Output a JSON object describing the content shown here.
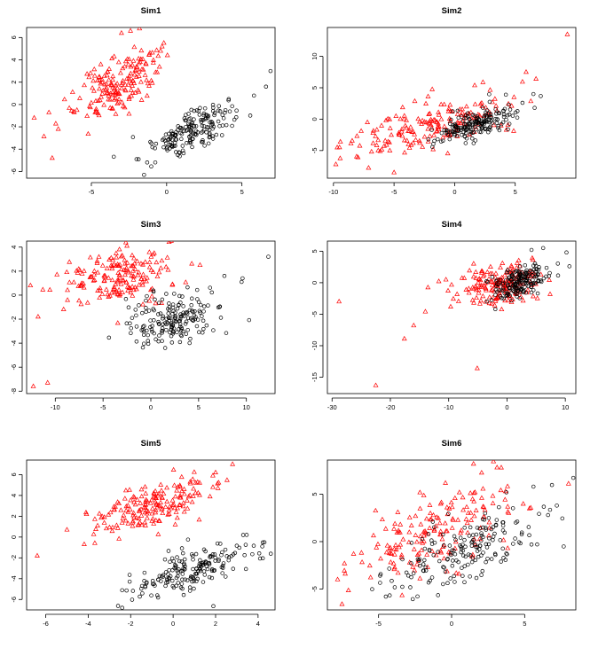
{
  "chart_data": [
    {
      "type": "scatter",
      "title": "Sim1",
      "xlabel": "",
      "ylabel": "",
      "xlim": [
        -9.3,
        7.2
      ],
      "ylim": [
        -6.6,
        6.9
      ],
      "xticks": [
        -5,
        0,
        5
      ],
      "yticks": [
        -6,
        -4,
        -2,
        0,
        2,
        4,
        6
      ],
      "grid": false,
      "legend": "none",
      "series": [
        {
          "marker": "triangle",
          "color": "#ff0000",
          "center": [
            -3.2,
            1.8
          ],
          "spread": [
            1.6,
            1.6
          ],
          "corr": 0.65,
          "n": 180,
          "extra": [
            [
              -8.8,
              -1.2
            ],
            [
              -7.6,
              -4.8
            ],
            [
              -2.4,
              6.6
            ],
            [
              -1.8,
              6.8
            ],
            [
              -7.2,
              -2.2
            ],
            [
              -3.0,
              6.4
            ]
          ]
        },
        {
          "marker": "circle",
          "color": "#000000",
          "center": [
            1.6,
            -2.3
          ],
          "spread": [
            1.5,
            1.3
          ],
          "corr": 0.7,
          "n": 180,
          "extra": [
            [
              -1.5,
              -6.3
            ],
            [
              6.9,
              3.0
            ],
            [
              6.6,
              1.6
            ],
            [
              -2.0,
              -4.9
            ],
            [
              5.8,
              0.8
            ]
          ]
        }
      ]
    },
    {
      "type": "scatter",
      "title": "Sim2",
      "xlabel": "",
      "ylabel": "",
      "xlim": [
        -10.5,
        10.0
      ],
      "ylim": [
        -9.4,
        14.6
      ],
      "xticks": [
        -10,
        -5,
        0,
        5
      ],
      "yticks": [
        -5,
        0,
        5,
        10
      ],
      "grid": false,
      "legend": "none",
      "series": [
        {
          "marker": "triangle",
          "color": "#ff0000",
          "center": [
            -1.8,
            -0.8
          ],
          "spread": [
            3.4,
            2.6
          ],
          "corr": 0.65,
          "n": 180,
          "extra": [
            [
              9.3,
              13.5
            ],
            [
              -9.8,
              -7.2
            ],
            [
              -5.0,
              -8.5
            ],
            [
              5.9,
              7.5
            ],
            [
              -9.5,
              -4.5
            ]
          ]
        },
        {
          "marker": "circle",
          "color": "#000000",
          "center": [
            1.8,
            -0.5
          ],
          "spread": [
            1.6,
            1.5
          ],
          "corr": 0.7,
          "n": 180,
          "extra": [
            [
              6.5,
              4.0
            ],
            [
              6.6,
              1.8
            ],
            [
              -1.4,
              -3.2
            ],
            [
              5.6,
              2.6
            ]
          ]
        }
      ]
    },
    {
      "type": "scatter",
      "title": "Sim3",
      "xlabel": "",
      "ylabel": "",
      "xlim": [
        -13.0,
        13.0
      ],
      "ylim": [
        -8.2,
        4.5
      ],
      "xticks": [
        -10,
        -5,
        0,
        5,
        10
      ],
      "yticks": [
        -8,
        -6,
        -4,
        -2,
        0,
        2,
        4
      ],
      "grid": false,
      "legend": "none",
      "series": [
        {
          "marker": "triangle",
          "color": "#ff0000",
          "center": [
            -3.2,
            1.5
          ],
          "spread": [
            3.0,
            1.3
          ],
          "corr": 0.1,
          "n": 180,
          "extra": [
            [
              -12.3,
              -7.6
            ],
            [
              -10.8,
              -7.3
            ],
            [
              -11.8,
              -1.8
            ],
            [
              -12.6,
              0.8
            ],
            [
              -2.5,
              4.1
            ]
          ]
        },
        {
          "marker": "circle",
          "color": "#000000",
          "center": [
            2.0,
            -2.0
          ],
          "spread": [
            2.5,
            1.1
          ],
          "corr": 0.15,
          "n": 180,
          "extra": [
            [
              12.3,
              3.2
            ],
            [
              9.6,
              1.4
            ],
            [
              9.5,
              1.1
            ],
            [
              7.7,
              1.6
            ],
            [
              1.5,
              -4.4
            ]
          ]
        }
      ]
    },
    {
      "type": "scatter",
      "title": "Sim4",
      "xlabel": "",
      "ylabel": "",
      "xlim": [
        -30.8,
        11.8
      ],
      "ylim": [
        -17.6,
        6.6
      ],
      "xticks": [
        -30,
        -20,
        -10,
        0,
        10
      ],
      "yticks": [
        -15,
        -10,
        -5,
        0,
        5
      ],
      "grid": false,
      "legend": "none",
      "series": [
        {
          "marker": "triangle",
          "color": "#ff0000",
          "center": [
            -1.0,
            -0.4
          ],
          "spread": [
            4.0,
            1.6
          ],
          "corr": 0.35,
          "n": 180,
          "extra": [
            [
              -22.5,
              -16.3
            ],
            [
              -28.8,
              -3.0
            ],
            [
              -17.6,
              -8.9
            ],
            [
              -5.1,
              -13.6
            ],
            [
              -16.0,
              -6.8
            ],
            [
              -14.0,
              -4.6
            ]
          ]
        },
        {
          "marker": "circle",
          "color": "#000000",
          "center": [
            2.4,
            0.2
          ],
          "spread": [
            2.4,
            1.4
          ],
          "corr": 0.55,
          "n": 180,
          "extra": [
            [
              10.2,
              4.8
            ],
            [
              10.7,
              2.6
            ],
            [
              6.2,
              5.5
            ],
            [
              4.2,
              5.2
            ],
            [
              -2.0,
              -4.2
            ]
          ]
        }
      ]
    },
    {
      "type": "scatter",
      "title": "Sim5",
      "xlabel": "",
      "ylabel": "",
      "xlim": [
        -6.9,
        4.8
      ],
      "ylim": [
        -7.0,
        7.4
      ],
      "xticks": [
        -6,
        -4,
        -2,
        0,
        2,
        4
      ],
      "yticks": [
        -6,
        -4,
        -2,
        0,
        2,
        4,
        6
      ],
      "grid": false,
      "legend": "none",
      "series": [
        {
          "marker": "triangle",
          "color": "#ff0000",
          "center": [
            -1.0,
            2.9
          ],
          "spread": [
            1.5,
            1.5
          ],
          "corr": 0.65,
          "n": 180,
          "extra": [
            [
              -6.4,
              -1.8
            ],
            [
              2.8,
              7.0
            ],
            [
              -5.0,
              0.7
            ],
            [
              2.0,
              6.2
            ]
          ]
        },
        {
          "marker": "circle",
          "color": "#000000",
          "center": [
            1.0,
            -3.2
          ],
          "spread": [
            1.3,
            1.3
          ],
          "corr": 0.65,
          "n": 180,
          "extra": [
            [
              -2.4,
              -6.8
            ],
            [
              4.6,
              -1.6
            ],
            [
              4.3,
              -0.5
            ],
            [
              3.3,
              0.2
            ]
          ]
        }
      ]
    },
    {
      "type": "scatter",
      "title": "Sim6",
      "xlabel": "",
      "ylabel": "",
      "xlim": [
        -8.5,
        8.5
      ],
      "ylim": [
        -7.2,
        8.6
      ],
      "xticks": [
        -5,
        0,
        5
      ],
      "yticks": [
        -5,
        0,
        5
      ],
      "grid": false,
      "legend": "none",
      "series": [
        {
          "marker": "triangle",
          "color": "#ff0000",
          "center": [
            -1.2,
            0.8
          ],
          "spread": [
            3.0,
            2.7
          ],
          "corr": 0.6,
          "n": 180,
          "extra": [
            [
              8.0,
              6.1
            ],
            [
              -7.5,
              -6.6
            ],
            [
              1.5,
              8.2
            ],
            [
              3.4,
              7.8
            ],
            [
              -7.8,
              -4.0
            ]
          ]
        },
        {
          "marker": "circle",
          "color": "#000000",
          "center": [
            1.0,
            -0.8
          ],
          "spread": [
            2.6,
            2.2
          ],
          "corr": 0.65,
          "n": 180,
          "extra": [
            [
              7.2,
              3.8
            ],
            [
              5.6,
              5.8
            ],
            [
              -4.5,
              -5.8
            ],
            [
              6.6,
              2.8
            ]
          ]
        }
      ]
    }
  ]
}
